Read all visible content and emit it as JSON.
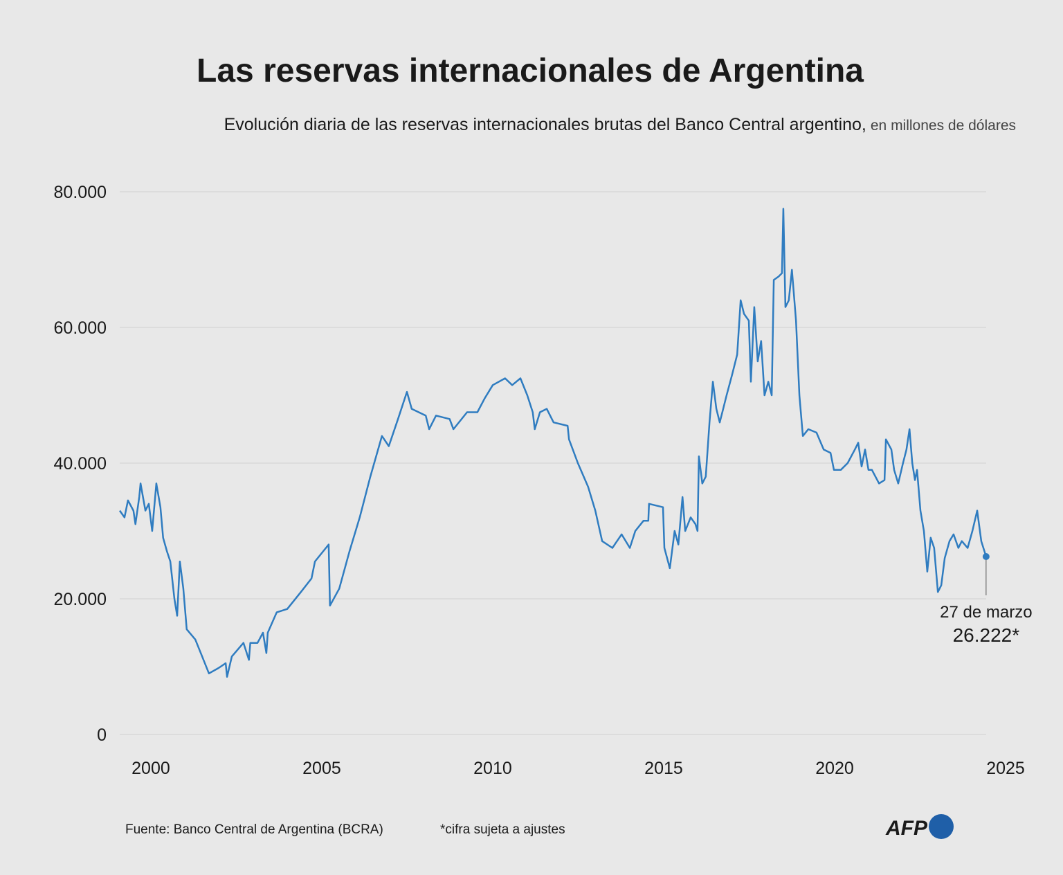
{
  "chart_data": {
    "type": "line",
    "title": "Las reservas internacionales de Argentina",
    "subtitle": "Evolución diaria de las reservas internacionales brutas del Banco Central argentino,",
    "subtitle_unit": "en millones de dólares",
    "x": [
      1999.09,
      1999.23,
      1999.33,
      1999.49,
      1999.55,
      1999.66,
      1999.7,
      1999.84,
      1999.94,
      2000.04,
      2000.16,
      2000.28,
      2000.36,
      2000.47,
      2000.57,
      2000.69,
      2000.77,
      2000.85,
      2000.95,
      2001.05,
      2001.3,
      2001.5,
      2001.7,
      2001.98,
      2002.19,
      2002.23,
      2002.37,
      2002.71,
      2002.87,
      2002.91,
      2003.12,
      2003.28,
      2003.38,
      2003.42,
      2003.68,
      2003.99,
      2004.39,
      2004.7,
      2004.8,
      2005.2,
      2005.24,
      2005.51,
      2005.81,
      2006.11,
      2006.42,
      2006.76,
      2006.96,
      2007.23,
      2007.49,
      2007.63,
      2008.04,
      2008.14,
      2008.34,
      2008.74,
      2008.85,
      2009.25,
      2009.55,
      2009.76,
      2010.0,
      2010.36,
      2010.57,
      2010.81,
      2011.01,
      2011.17,
      2011.23,
      2011.38,
      2011.58,
      2011.78,
      2012.19,
      2012.23,
      2012.49,
      2012.79,
      2013.0,
      2013.2,
      2013.5,
      2013.77,
      2014.01,
      2014.17,
      2014.41,
      2014.55,
      2014.57,
      2014.98,
      2015.02,
      2015.18,
      2015.32,
      2015.43,
      2015.55,
      2015.63,
      2015.79,
      2015.93,
      2015.99,
      2016.03,
      2016.13,
      2016.23,
      2016.34,
      2016.44,
      2016.54,
      2016.64,
      2016.74,
      2016.84,
      2017.0,
      2017.15,
      2017.25,
      2017.35,
      2017.49,
      2017.55,
      2017.65,
      2017.75,
      2017.85,
      2017.95,
      2018.06,
      2018.16,
      2018.22,
      2018.36,
      2018.46,
      2018.5,
      2018.56,
      2018.66,
      2018.75,
      2018.87,
      2018.97,
      2019.07,
      2019.23,
      2019.47,
      2019.68,
      2019.88,
      2019.98,
      2020.18,
      2020.38,
      2020.59,
      2020.69,
      2020.79,
      2020.89,
      2020.99,
      2021.09,
      2021.3,
      2021.46,
      2021.5,
      2021.66,
      2021.74,
      2021.86,
      2022.0,
      2022.1,
      2022.19,
      2022.27,
      2022.35,
      2022.41,
      2022.51,
      2022.61,
      2022.71,
      2022.81,
      2022.91,
      2023.02,
      2023.12,
      2023.22,
      2023.36,
      2023.48,
      2023.62,
      2023.72,
      2023.89,
      2024.03,
      2024.17,
      2024.29,
      2024.43
    ],
    "series": [
      {
        "name": "Reservas internacionales brutas",
        "color": "#2f7cc0",
        "values": [
          33000,
          32000,
          34500,
          33000,
          31000,
          35000,
          37000,
          33000,
          34000,
          30000,
          37000,
          33500,
          29000,
          27000,
          25500,
          20000,
          17500,
          25500,
          21500,
          15500,
          14000,
          11500,
          9000,
          9800,
          10500,
          8500,
          11500,
          13500,
          11000,
          13500,
          13500,
          15000,
          12000,
          15000,
          18000,
          18500,
          21000,
          23000,
          25500,
          28000,
          19000,
          21500,
          27000,
          32000,
          38000,
          44000,
          42500,
          46500,
          50500,
          48000,
          47000,
          45000,
          47000,
          46500,
          45000,
          47500,
          47500,
          49500,
          51500,
          52500,
          51500,
          52500,
          50000,
          47500,
          45000,
          47500,
          48000,
          46000,
          45500,
          43500,
          40000,
          36500,
          33000,
          28500,
          27500,
          29500,
          27500,
          30000,
          31500,
          31500,
          34000,
          33500,
          27500,
          24500,
          30000,
          28000,
          35000,
          30000,
          32000,
          31000,
          30000,
          41000,
          37000,
          38000,
          46000,
          52000,
          48000,
          46000,
          48000,
          50000,
          53000,
          56000,
          64000,
          62000,
          61000,
          52000,
          63000,
          55000,
          58000,
          50000,
          52000,
          50000,
          67000,
          67500,
          68000,
          77500,
          63000,
          64000,
          68500,
          61000,
          50000,
          44000,
          45000,
          44500,
          42000,
          41500,
          39000,
          39000,
          40000,
          42000,
          43000,
          39500,
          42000,
          39000,
          39000,
          37000,
          37500,
          43500,
          42000,
          39000,
          37000,
          40000,
          42000,
          45000,
          40000,
          37500,
          39000,
          33000,
          30000,
          24000,
          29000,
          27500,
          21000,
          22000,
          26000,
          28500,
          29500,
          27500,
          28500,
          27500,
          30000,
          33000,
          28500,
          26222
        ]
      }
    ],
    "xlim": [
      1999.09,
      2025.04
    ],
    "xticks": [
      2000,
      2005,
      2010,
      2015,
      2020,
      2025
    ],
    "ylim": [
      0,
      80000
    ],
    "yticks": [
      0,
      {
        "value": 20000,
        "label": "20.000"
      },
      {
        "value": 40000,
        "label": "40.000"
      },
      {
        "value": 60000,
        "label": "60.000"
      },
      {
        "value": 80000,
        "label": "80.000"
      }
    ],
    "grid": true,
    "annotation": {
      "date": "27 de marzo",
      "label": "26.222*"
    },
    "source": "Fuente: Banco Central de Argentina (BCRA)",
    "note": "*cifra sujeta a ajustes",
    "logo": "AFP"
  }
}
